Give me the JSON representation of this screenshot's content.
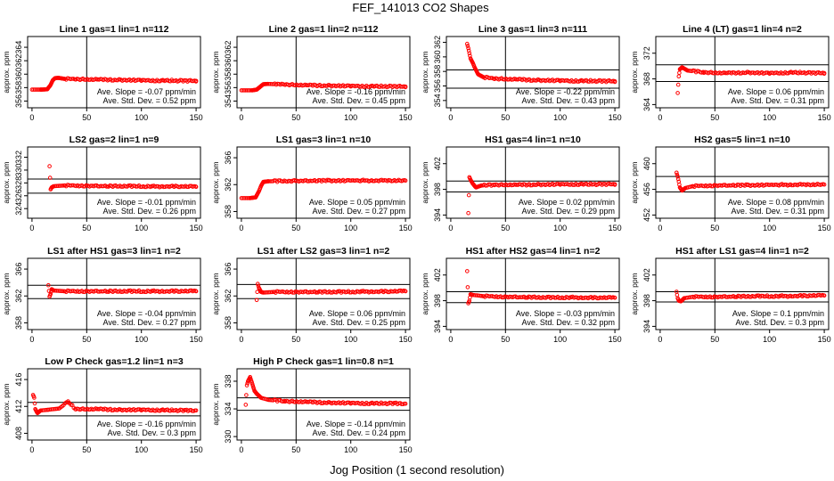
{
  "figure": {
    "title": "FEF_141013  CO2 Shapes",
    "xlabel": "Jog Position (1 second resolution)"
  },
  "style": {
    "point_color": "#ff0000",
    "line_color": "#000000"
  },
  "chart_data": [
    {
      "type": "scatter",
      "title": "Line 1 gas=1 lin=1 n=112",
      "ylabel": "approx. ppm",
      "xlim": [
        -4,
        154
      ],
      "ylim": [
        355,
        365.6
      ],
      "yticks": [
        356,
        358,
        360,
        362,
        364
      ],
      "xticks": [
        0,
        50,
        100,
        150
      ],
      "hlines": [],
      "vline": 50,
      "annotations": [
        "Ave. Slope = -0.07 ppm/min",
        "Ave. Std. Dev. = 0.52 ppm"
      ],
      "points": [
        [
          0,
          357.7
        ],
        [
          8,
          357.7
        ],
        [
          14,
          357.75
        ],
        [
          17,
          358.4
        ],
        [
          19,
          359.1
        ],
        [
          21,
          359.4
        ],
        [
          24,
          359.45
        ],
        [
          30,
          359.3
        ],
        [
          40,
          359.25
        ],
        [
          60,
          359.2
        ],
        [
          80,
          359.15
        ],
        [
          100,
          359.1
        ],
        [
          120,
          359.05
        ],
        [
          150,
          359.0
        ]
      ]
    },
    {
      "type": "scatter",
      "title": "Line 2 gas=1 lin=2 n=112",
      "ylabel": "approx. ppm",
      "xlim": [
        -4,
        154
      ],
      "ylim": [
        353,
        363.6
      ],
      "yticks": [
        354,
        356,
        358,
        360,
        362
      ],
      "xticks": [
        0,
        50,
        100,
        150
      ],
      "hlines": [],
      "vline": 50,
      "annotations": [
        "Ave. Slope = -0.16 ppm/min",
        "Ave. Std. Dev. = 0.45 ppm"
      ],
      "points": [
        [
          0,
          355.6
        ],
        [
          10,
          355.6
        ],
        [
          14,
          355.7
        ],
        [
          17,
          356.1
        ],
        [
          20,
          356.5
        ],
        [
          24,
          356.55
        ],
        [
          40,
          356.45
        ],
        [
          60,
          356.35
        ],
        [
          80,
          356.3
        ],
        [
          100,
          356.25
        ],
        [
          120,
          356.2
        ],
        [
          150,
          356.15
        ]
      ]
    },
    {
      "type": "scatter",
      "title": "Line 3 gas=1 lin=3 n=111",
      "ylabel": "approx. ppm",
      "xlim": [
        -4,
        154
      ],
      "ylim": [
        353,
        362.8
      ],
      "yticks": [
        354,
        356,
        358,
        360,
        362
      ],
      "xticks": [
        0,
        50,
        100,
        150
      ],
      "hlines": [
        358.2,
        355.7
      ],
      "vline": 50,
      "annotations": [
        "Ave. Slope = -0.22 ppm/min",
        "Ave. Std. Dev. = 0.43 ppm"
      ],
      "points": [
        [
          15,
          361.8
        ],
        [
          16,
          361.2
        ],
        [
          17,
          360.5
        ],
        [
          18,
          359.8
        ],
        [
          20,
          359.2
        ],
        [
          22,
          358.5
        ],
        [
          25,
          357.6
        ],
        [
          30,
          357.2
        ],
        [
          40,
          357.0
        ],
        [
          60,
          356.9
        ],
        [
          80,
          356.8
        ],
        [
          100,
          356.75
        ],
        [
          120,
          356.7
        ],
        [
          150,
          356.65
        ]
      ]
    },
    {
      "type": "scatter",
      "title": "Line 4 (LT) gas=1 lin=4 n=2",
      "ylabel": "approx. ppm",
      "xlim": [
        -4,
        154
      ],
      "ylim": [
        363.5,
        374.6
      ],
      "yticks": [
        364,
        368,
        372
      ],
      "xticks": [
        0,
        50,
        100,
        150
      ],
      "hlines": [
        370.2,
        367.6
      ],
      "vline": 50,
      "annotations": [
        "Ave. Slope = 0.06 ppm/min",
        "Ave. Std. Dev. = 0.31 ppm"
      ],
      "points": [
        [
          16,
          365.8
        ],
        [
          17,
          368.4
        ],
        [
          18,
          369.5
        ],
        [
          20,
          369.8
        ],
        [
          25,
          369.3
        ],
        [
          40,
          369.0
        ],
        [
          60,
          368.9
        ],
        [
          80,
          369.0
        ],
        [
          100,
          368.9
        ],
        [
          120,
          369.0
        ],
        [
          150,
          368.9
        ]
      ]
    },
    {
      "type": "scatter",
      "title": "LS2 gas=2 lin=1 n=9",
      "ylabel": "approx. ppm",
      "xlim": [
        -4,
        154
      ],
      "ylim": [
        322.5,
        333.6
      ],
      "yticks": [
        324,
        326,
        328,
        330,
        332
      ],
      "xticks": [
        0,
        50,
        100,
        150
      ],
      "hlines": [
        328.6,
        326.4
      ],
      "vline": 50,
      "annotations": [
        "Ave. Slope = -0.01 ppm/min",
        "Ave. Std. Dev. = 0.26 ppm"
      ],
      "points": [
        [
          16,
          330.6
        ],
        [
          17,
          327.0
        ],
        [
          18,
          327.3
        ],
        [
          20,
          327.5
        ],
        [
          30,
          327.6
        ],
        [
          50,
          327.55
        ],
        [
          70,
          327.5
        ],
        [
          90,
          327.5
        ],
        [
          110,
          327.45
        ],
        [
          130,
          327.45
        ],
        [
          150,
          327.4
        ]
      ]
    },
    {
      "type": "scatter",
      "title": "LS1 gas=3 lin=1 n=10",
      "ylabel": "approx. ppm",
      "xlim": [
        -4,
        154
      ],
      "ylim": [
        357,
        367.6
      ],
      "yticks": [
        358,
        362,
        366
      ],
      "xticks": [
        0,
        50,
        100,
        150
      ],
      "hlines": [],
      "vline": 50,
      "annotations": [
        "Ave. Slope = 0.05 ppm/min",
        "Ave. Std. Dev. = 0.27 ppm"
      ],
      "points": [
        [
          0,
          360.0
        ],
        [
          8,
          360.0
        ],
        [
          13,
          360.1
        ],
        [
          16,
          361.0
        ],
        [
          18,
          361.8
        ],
        [
          20,
          362.4
        ],
        [
          25,
          362.5
        ],
        [
          50,
          362.55
        ],
        [
          80,
          362.6
        ],
        [
          110,
          362.6
        ],
        [
          150,
          362.6
        ]
      ]
    },
    {
      "type": "scatter",
      "title": "HS1 gas=4 lin=1 n=10",
      "ylabel": "approx. ppm",
      "xlim": [
        -4,
        154
      ],
      "ylim": [
        393.5,
        404.6
      ],
      "yticks": [
        394,
        398,
        402
      ],
      "xticks": [
        0,
        50,
        100,
        150
      ],
      "hlines": [
        399.3,
        397.6
      ],
      "vline": 50,
      "annotations": [
        "Ave. Slope = 0.02 ppm/min",
        "Ave. Std. Dev. = 0.29 ppm"
      ],
      "points": [
        [
          16,
          394.3
        ],
        [
          17,
          399.9
        ],
        [
          18,
          399.5
        ],
        [
          20,
          398.9
        ],
        [
          23,
          398.3
        ],
        [
          28,
          398.6
        ],
        [
          40,
          398.7
        ],
        [
          60,
          398.7
        ],
        [
          80,
          398.75
        ],
        [
          100,
          398.8
        ],
        [
          120,
          398.8
        ],
        [
          150,
          398.8
        ]
      ]
    },
    {
      "type": "scatter",
      "title": "HS2 gas=5 lin=1 n=10",
      "ylabel": "approx. ppm",
      "xlim": [
        -4,
        154
      ],
      "ylim": [
        451.5,
        462.6
      ],
      "yticks": [
        452,
        456,
        460
      ],
      "xticks": [
        0,
        50,
        100,
        150
      ],
      "hlines": [
        458.0,
        455.6
      ],
      "vline": 50,
      "annotations": [
        "Ave. Slope = 0.08 ppm/min",
        "Ave. Std. Dev. = 0.31 ppm"
      ],
      "points": [
        [
          15,
          458.6
        ],
        [
          16,
          458.0
        ],
        [
          17,
          457.2
        ],
        [
          18,
          456.3
        ],
        [
          20,
          455.8
        ],
        [
          23,
          456.2
        ],
        [
          30,
          456.5
        ],
        [
          50,
          456.6
        ],
        [
          80,
          456.65
        ],
        [
          110,
          456.7
        ],
        [
          150,
          456.75
        ]
      ]
    },
    {
      "type": "scatter",
      "title": "LS1 after HS1 gas=3 lin=1 n=2",
      "ylabel": "approx. ppm",
      "xlim": [
        -4,
        154
      ],
      "ylim": [
        357,
        367.6
      ],
      "yticks": [
        358,
        362,
        366
      ],
      "xticks": [
        0,
        50,
        100,
        150
      ],
      "hlines": [
        363.6,
        361.6
      ],
      "vline": 50,
      "annotations": [
        "Ave. Slope = -0.04 ppm/min",
        "Ave. Std. Dev. = 0.27 ppm"
      ],
      "points": [
        [
          15,
          363.6
        ],
        [
          16,
          361.9
        ],
        [
          17,
          362.3
        ],
        [
          18,
          363.0
        ],
        [
          20,
          362.8
        ],
        [
          30,
          362.7
        ],
        [
          50,
          362.7
        ],
        [
          70,
          362.7
        ],
        [
          90,
          362.7
        ],
        [
          110,
          362.7
        ],
        [
          130,
          362.7
        ],
        [
          150,
          362.7
        ]
      ]
    },
    {
      "type": "scatter",
      "title": "LS1 after LS2 gas=3 lin=1 n=2",
      "ylabel": "approx. ppm",
      "xlim": [
        -4,
        154
      ],
      "ylim": [
        357,
        367.6
      ],
      "yticks": [
        358,
        362,
        366
      ],
      "xticks": [
        0,
        50,
        100,
        150
      ],
      "hlines": [
        363.7,
        361.6
      ],
      "vline": 50,
      "annotations": [
        "Ave. Slope = 0.06 ppm/min",
        "Ave. Std. Dev. = 0.25 ppm"
      ],
      "points": [
        [
          14,
          361.4
        ],
        [
          15,
          363.8
        ],
        [
          16,
          363.2
        ],
        [
          18,
          362.6
        ],
        [
          20,
          362.5
        ],
        [
          30,
          362.6
        ],
        [
          50,
          362.6
        ],
        [
          70,
          362.6
        ],
        [
          90,
          362.6
        ],
        [
          110,
          362.65
        ],
        [
          130,
          362.65
        ],
        [
          150,
          362.7
        ]
      ]
    },
    {
      "type": "scatter",
      "title": "HS1 after HS2 gas=4 lin=1 n=2",
      "ylabel": "approx. ppm",
      "xlim": [
        -4,
        154
      ],
      "ylim": [
        393.5,
        404.6
      ],
      "yticks": [
        394,
        398,
        402
      ],
      "xticks": [
        0,
        50,
        100,
        150
      ],
      "hlines": [
        399.4,
        397.7
      ],
      "vline": 50,
      "annotations": [
        "Ave. Slope = -0.03 ppm/min",
        "Ave. Std. Dev. = 0.32 ppm"
      ],
      "points": [
        [
          15,
          402.6
        ],
        [
          16,
          397.6
        ],
        [
          17,
          398.0
        ],
        [
          18,
          399.0
        ],
        [
          20,
          398.9
        ],
        [
          30,
          398.7
        ],
        [
          50,
          398.6
        ],
        [
          70,
          398.55
        ],
        [
          90,
          398.5
        ],
        [
          110,
          398.5
        ],
        [
          130,
          398.45
        ],
        [
          150,
          398.45
        ]
      ]
    },
    {
      "type": "scatter",
      "title": "HS1 after LS1 gas=4 lin=1 n=2",
      "ylabel": "approx. ppm",
      "xlim": [
        -4,
        154
      ],
      "ylim": [
        393.5,
        404.6
      ],
      "yticks": [
        394,
        398,
        402
      ],
      "xticks": [
        0,
        50,
        100,
        150
      ],
      "hlines": [
        399.4,
        397.8
      ],
      "vline": 50,
      "annotations": [
        "Ave. Slope = 0.1 ppm/min",
        "Ave. Std. Dev. = 0.3 ppm"
      ],
      "points": [
        [
          15,
          399.4
        ],
        [
          16,
          398.4
        ],
        [
          17,
          398.0
        ],
        [
          19,
          397.9
        ],
        [
          22,
          398.4
        ],
        [
          30,
          398.6
        ],
        [
          50,
          398.6
        ],
        [
          70,
          398.65
        ],
        [
          90,
          398.7
        ],
        [
          110,
          398.7
        ],
        [
          130,
          398.75
        ],
        [
          150,
          398.8
        ]
      ]
    },
    {
      "type": "scatter",
      "title": "Low P Check gas=1.2 lin=1 n=3",
      "ylabel": "approx. ppm",
      "xlim": [
        -4,
        154
      ],
      "ylim": [
        407,
        417.6
      ],
      "yticks": [
        408,
        412,
        416
      ],
      "xticks": [
        0,
        50,
        100,
        150
      ],
      "hlines": [
        412.6,
        410.6
      ],
      "vline": 50,
      "annotations": [
        "Ave. Slope = -0.16 ppm/min",
        "Ave. Std. Dev. = 0.3 ppm"
      ],
      "points": [
        [
          1,
          413.7
        ],
        [
          2,
          413.3
        ],
        [
          3,
          411.6
        ],
        [
          5,
          411.0
        ],
        [
          8,
          411.4
        ],
        [
          15,
          411.5
        ],
        [
          25,
          411.7
        ],
        [
          33,
          412.7
        ],
        [
          40,
          411.6
        ],
        [
          60,
          411.6
        ],
        [
          80,
          411.5
        ],
        [
          100,
          411.5
        ],
        [
          120,
          411.45
        ],
        [
          140,
          411.4
        ],
        [
          150,
          411.4
        ]
      ]
    },
    {
      "type": "scatter",
      "title": "High P Check gas=1 lin=0.8 n=1",
      "ylabel": "approx. ppm",
      "xlim": [
        -4,
        154
      ],
      "ylim": [
        329.5,
        339.8
      ],
      "yticks": [
        330,
        334,
        338
      ],
      "xticks": [
        0,
        50,
        100,
        150
      ],
      "hlines": [
        335.6,
        333.8
      ],
      "vline": 50,
      "annotations": [
        "Ave. Slope = -0.14 ppm/min",
        "Ave. Std. Dev. = 0.24 ppm"
      ],
      "points": [
        [
          4,
          334.6
        ],
        [
          5,
          337.4
        ],
        [
          6,
          338.0
        ],
        [
          8,
          338.6
        ],
        [
          10,
          337.6
        ],
        [
          12,
          336.6
        ],
        [
          14,
          336.2
        ],
        [
          18,
          335.6
        ],
        [
          25,
          335.3
        ],
        [
          40,
          335.1
        ],
        [
          60,
          335.0
        ],
        [
          80,
          334.9
        ],
        [
          100,
          334.85
        ],
        [
          120,
          334.8
        ],
        [
          140,
          334.8
        ],
        [
          150,
          334.75
        ]
      ]
    }
  ]
}
